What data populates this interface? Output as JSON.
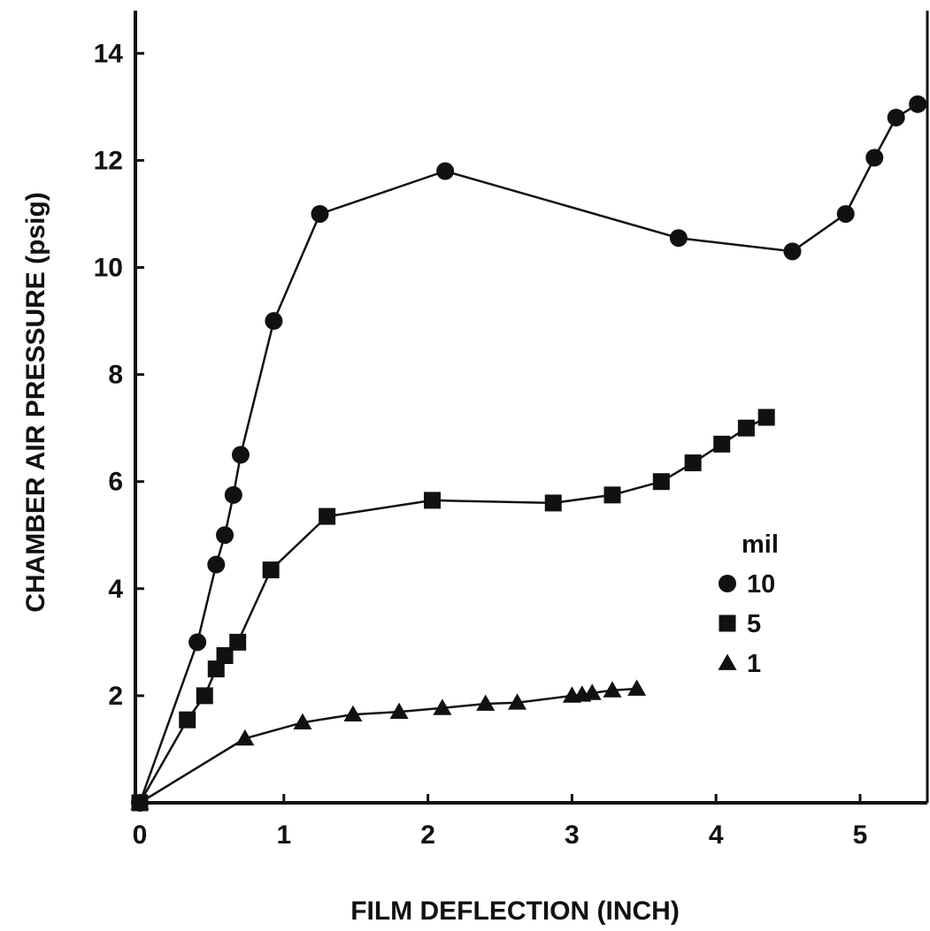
{
  "chart_data": {
    "type": "line",
    "title": "",
    "xlabel": "FILM DEFLECTION (INCH)",
    "ylabel": "CHAMBER AIR PRESSURE (psig)",
    "xlim": [
      0,
      5.45
    ],
    "ylim": [
      0,
      14.8
    ],
    "xticks": [
      "0",
      "1",
      "2",
      "3",
      "4",
      "5"
    ],
    "yticks": [
      "2",
      "4",
      "6",
      "8",
      "10",
      "12",
      "14"
    ],
    "grid": false,
    "legend": {
      "title": "mil",
      "placement": "center-right"
    },
    "series": [
      {
        "name": "10",
        "marker": "circle",
        "points": [
          [
            0,
            0
          ],
          [
            0.4,
            3.0
          ],
          [
            0.53,
            4.45
          ],
          [
            0.59,
            5.0
          ],
          [
            0.65,
            5.75
          ],
          [
            0.7,
            6.5
          ],
          [
            0.93,
            9.0
          ],
          [
            1.25,
            11.0
          ],
          [
            2.12,
            11.8
          ],
          [
            3.74,
            10.55
          ],
          [
            4.53,
            10.3
          ],
          [
            4.9,
            11.0
          ],
          [
            5.1,
            12.05
          ],
          [
            5.25,
            12.8
          ],
          [
            5.4,
            13.05
          ]
        ]
      },
      {
        "name": "5",
        "marker": "square",
        "points": [
          [
            0,
            0
          ],
          [
            0.33,
            1.55
          ],
          [
            0.45,
            2.0
          ],
          [
            0.53,
            2.5
          ],
          [
            0.59,
            2.75
          ],
          [
            0.68,
            3.0
          ],
          [
            0.91,
            4.35
          ],
          [
            1.3,
            5.35
          ],
          [
            2.03,
            5.65
          ],
          [
            2.87,
            5.6
          ],
          [
            3.28,
            5.75
          ],
          [
            3.62,
            6.0
          ],
          [
            3.84,
            6.35
          ],
          [
            4.04,
            6.7
          ],
          [
            4.21,
            7.0
          ],
          [
            4.35,
            7.2
          ]
        ]
      },
      {
        "name": "1",
        "marker": "triangle",
        "points": [
          [
            0,
            0
          ],
          [
            0.73,
            1.2
          ],
          [
            1.13,
            1.5
          ],
          [
            1.48,
            1.65
          ],
          [
            1.8,
            1.7
          ],
          [
            2.1,
            1.77
          ],
          [
            2.4,
            1.85
          ],
          [
            2.62,
            1.87
          ],
          [
            3.0,
            2.0
          ],
          [
            3.07,
            2.02
          ],
          [
            3.14,
            2.05
          ],
          [
            3.28,
            2.1
          ],
          [
            3.45,
            2.13
          ]
        ]
      }
    ]
  }
}
